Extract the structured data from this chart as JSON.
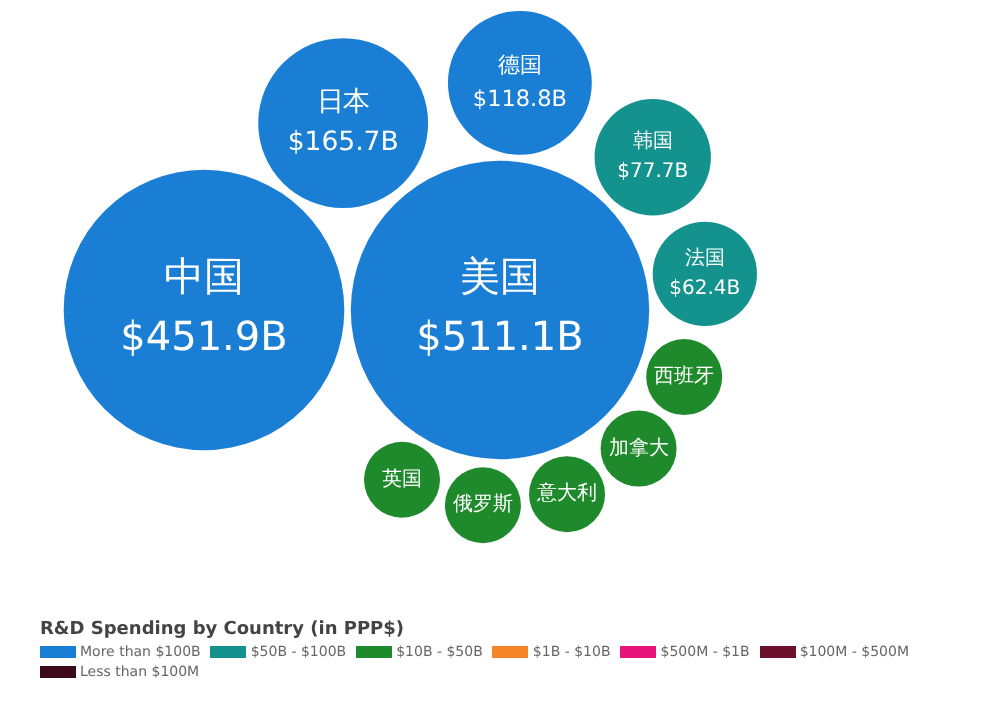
{
  "chart_data": {
    "type": "other",
    "title": "R&D Spending by Country (in PPP$)",
    "categories": [
      "美国",
      "中国",
      "日本",
      "德国",
      "韩国",
      "法国",
      "西班牙",
      "加拿大",
      "意大利",
      "俄罗斯",
      "英国"
    ],
    "colors": [
      "#1a7fd4",
      "#1a7fd4",
      "#1a7fd4",
      "#1a7fd4",
      "#14928e",
      "#14928e",
      "#1f8a2b",
      "#1f8a2b",
      "#1f8a2b",
      "#1f8a2b",
      "#1f8a2b"
    ],
    "legend": "bottom",
    "series": [
      {
        "name": "More than $100B",
        "color": "#1a7fd4",
        "values": [
          511.1,
          451.9,
          165.7,
          118.8,
          null,
          null,
          null,
          null,
          null,
          null,
          null
        ],
        "value_labels": [
          "$511.1B",
          "$451.9B",
          "$165.7B",
          "$118.8B",
          null,
          null,
          null,
          null,
          null,
          null,
          null
        ]
      },
      {
        "name": "$50B - $100B",
        "color": "#14928e",
        "values": [
          null,
          null,
          null,
          null,
          77.7,
          62.4,
          null,
          null,
          null,
          null,
          null
        ],
        "value_labels": [
          null,
          null,
          null,
          null,
          "$77.7B",
          "$62.4B",
          null,
          null,
          null,
          null,
          null
        ]
      },
      {
        "name": "$10B - $50B",
        "color": "#1f8a2b",
        "values": [
          null,
          null,
          null,
          null,
          null,
          null,
          null,
          null,
          null,
          null,
          null
        ]
      },
      {
        "name": "$1B - $10B",
        "color": "#f5862a",
        "values": [
          null,
          null,
          null,
          null,
          null,
          null,
          null,
          null,
          null,
          null,
          null
        ]
      },
      {
        "name": "$500M - $1B",
        "color": "#e8147c",
        "values": [
          null,
          null,
          null,
          null,
          null,
          null,
          null,
          null,
          null,
          null,
          null
        ]
      },
      {
        "name": "$100M - $500M",
        "color": "#6b0f2a",
        "values": [
          null,
          null,
          null,
          null,
          null,
          null,
          null,
          null,
          null,
          null,
          null
        ]
      },
      {
        "name": "Less than $100M",
        "color": "#3d0a1a",
        "values": [
          null,
          null,
          null,
          null,
          null,
          null,
          null,
          null,
          null,
          null,
          null
        ]
      }
    ]
  }
}
